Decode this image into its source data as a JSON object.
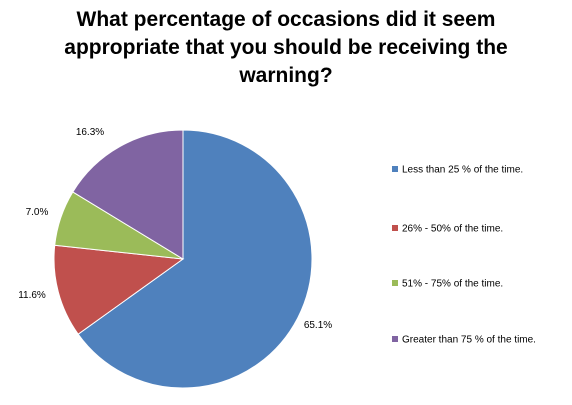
{
  "chart_data": {
    "type": "pie",
    "title_lines": [
      "What percentage of occasions did it seem",
      "appropriate that you should be receiving the",
      "warning?"
    ],
    "slices": [
      {
        "name": "Less than 25 % of the time.",
        "value": 65.1,
        "label": "65.1%",
        "color": "#4F81BD"
      },
      {
        "name": "26% - 50% of the time.",
        "value": 11.6,
        "label": "11.6%",
        "color": "#C0504D"
      },
      {
        "name": "51% - 75% of the time.",
        "value": 7.0,
        "label": "7.0%",
        "color": "#9BBB59"
      },
      {
        "name": "Greater than 75 % of the time.",
        "value": 16.3,
        "label": "16.3%",
        "color": "#8064A2"
      }
    ],
    "start_angle_deg": 0,
    "direction": "clockwise",
    "legend": "right"
  }
}
